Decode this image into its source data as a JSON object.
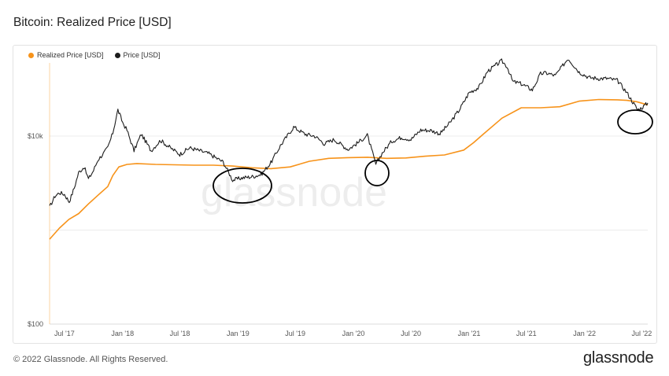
{
  "header": {
    "title": "Bitcoin: Realized Price [USD]"
  },
  "footer": {
    "copyright": "© 2022 Glassnode. All Rights Reserved.",
    "logo": "glassnode"
  },
  "watermark": "glassnode",
  "chart_data": {
    "type": "line",
    "title": "Bitcoin: Realized Price [USD]",
    "x_axis": {
      "type": "date",
      "ticks": [
        "Jul '17",
        "Jan '18",
        "Jul '18",
        "Jan '19",
        "Jul '19",
        "Jan '20",
        "Jul '20",
        "Jan '21",
        "Jul '21",
        "Jan '22",
        "Jul '22"
      ],
      "range": [
        "2017-05-15",
        "2022-07-20"
      ]
    },
    "y_axis": {
      "scale": "log",
      "tick_labels": [
        "$100",
        "$10k"
      ],
      "range": [
        100,
        60000
      ]
    },
    "grid": "horizontal",
    "legend": {
      "placement": "top-left",
      "entries": [
        "Realized Price [USD]",
        "Price [USD]"
      ]
    },
    "colors": {
      "realized": "#f7931a",
      "price": "#1c1c1c",
      "annotation": "#000000"
    },
    "series": [
      {
        "name": "Realized Price [USD]",
        "x": [
          "2017-05-15",
          "2017-06-15",
          "2017-07-15",
          "2017-08-15",
          "2017-09-15",
          "2017-10-15",
          "2017-11-15",
          "2017-12-01",
          "2017-12-20",
          "2018-01-15",
          "2018-02-15",
          "2018-04-15",
          "2018-06-15",
          "2018-08-15",
          "2018-10-15",
          "2018-12-15",
          "2019-02-15",
          "2019-04-15",
          "2019-06-15",
          "2019-08-15",
          "2019-10-15",
          "2019-12-15",
          "2020-02-15",
          "2020-04-15",
          "2020-06-15",
          "2020-08-15",
          "2020-10-15",
          "2020-12-15",
          "2021-01-15",
          "2021-02-15",
          "2021-04-15",
          "2021-06-15",
          "2021-08-15",
          "2021-10-15",
          "2021-12-15",
          "2022-02-15",
          "2022-04-15",
          "2022-05-15",
          "2022-06-15",
          "2022-07-20"
        ],
        "values": [
          800,
          1050,
          1300,
          1500,
          1900,
          2350,
          2900,
          3800,
          4700,
          5000,
          5100,
          5000,
          4950,
          4900,
          4900,
          4800,
          4600,
          4500,
          4700,
          5400,
          5800,
          5900,
          5950,
          5800,
          5850,
          6100,
          6300,
          7100,
          8500,
          10500,
          15500,
          20000,
          20000,
          20500,
          23500,
          24500,
          24300,
          24000,
          23200,
          21500
        ]
      },
      {
        "name": "Price [USD]",
        "x": [
          "2017-05-15",
          "2017-06-01",
          "2017-06-15",
          "2017-07-01",
          "2017-07-16",
          "2017-08-01",
          "2017-08-15",
          "2017-09-01",
          "2017-09-15",
          "2017-10-01",
          "2017-10-15",
          "2017-11-01",
          "2017-11-15",
          "2017-12-01",
          "2017-12-17",
          "2018-01-01",
          "2018-01-15",
          "2018-02-06",
          "2018-03-01",
          "2018-04-01",
          "2018-05-01",
          "2018-06-01",
          "2018-07-01",
          "2018-08-01",
          "2018-09-01",
          "2018-10-01",
          "2018-11-15",
          "2018-12-15",
          "2019-01-15",
          "2019-02-15",
          "2019-03-15",
          "2019-04-15",
          "2019-05-15",
          "2019-06-26",
          "2019-08-01",
          "2019-09-01",
          "2019-10-01",
          "2019-11-01",
          "2019-12-15",
          "2020-01-15",
          "2020-02-14",
          "2020-03-12",
          "2020-04-01",
          "2020-05-01",
          "2020-06-01",
          "2020-07-01",
          "2020-08-01",
          "2020-09-01",
          "2020-10-01",
          "2020-11-01",
          "2020-12-01",
          "2021-01-01",
          "2021-02-01",
          "2021-03-01",
          "2021-04-14",
          "2021-05-01",
          "2021-05-19",
          "2021-06-15",
          "2021-07-20",
          "2021-08-15",
          "2021-09-01",
          "2021-10-01",
          "2021-11-10",
          "2021-12-15",
          "2022-01-15",
          "2022-02-15",
          "2022-03-15",
          "2022-04-15",
          "2022-05-15",
          "2022-06-18",
          "2022-07-01",
          "2022-07-20"
        ],
        "values": [
          1750,
          2300,
          2500,
          2400,
          2000,
          2800,
          4100,
          4700,
          3500,
          4300,
          5600,
          6500,
          7500,
          10800,
          19000,
          14000,
          11500,
          7000,
          10500,
          7000,
          9000,
          7500,
          6400,
          7500,
          7000,
          6500,
          5300,
          3400,
          3600,
          3700,
          3900,
          5200,
          7900,
          12500,
          10500,
          10000,
          8300,
          9200,
          7200,
          8500,
          10200,
          5000,
          6600,
          8800,
          9700,
          9200,
          11600,
          11500,
          10600,
          13800,
          19000,
          29000,
          33000,
          49000,
          63000,
          55000,
          38000,
          36000,
          31000,
          46000,
          47000,
          44000,
          67000,
          48000,
          42000,
          41000,
          41000,
          39000,
          29000,
          19000,
          20000,
          22500
        ]
      }
    ],
    "annotations": [
      {
        "shape": "circle",
        "around": "2018-12"
      },
      {
        "shape": "circle",
        "around": "2020-03"
      },
      {
        "shape": "circle",
        "around": "2022-06"
      }
    ]
  }
}
